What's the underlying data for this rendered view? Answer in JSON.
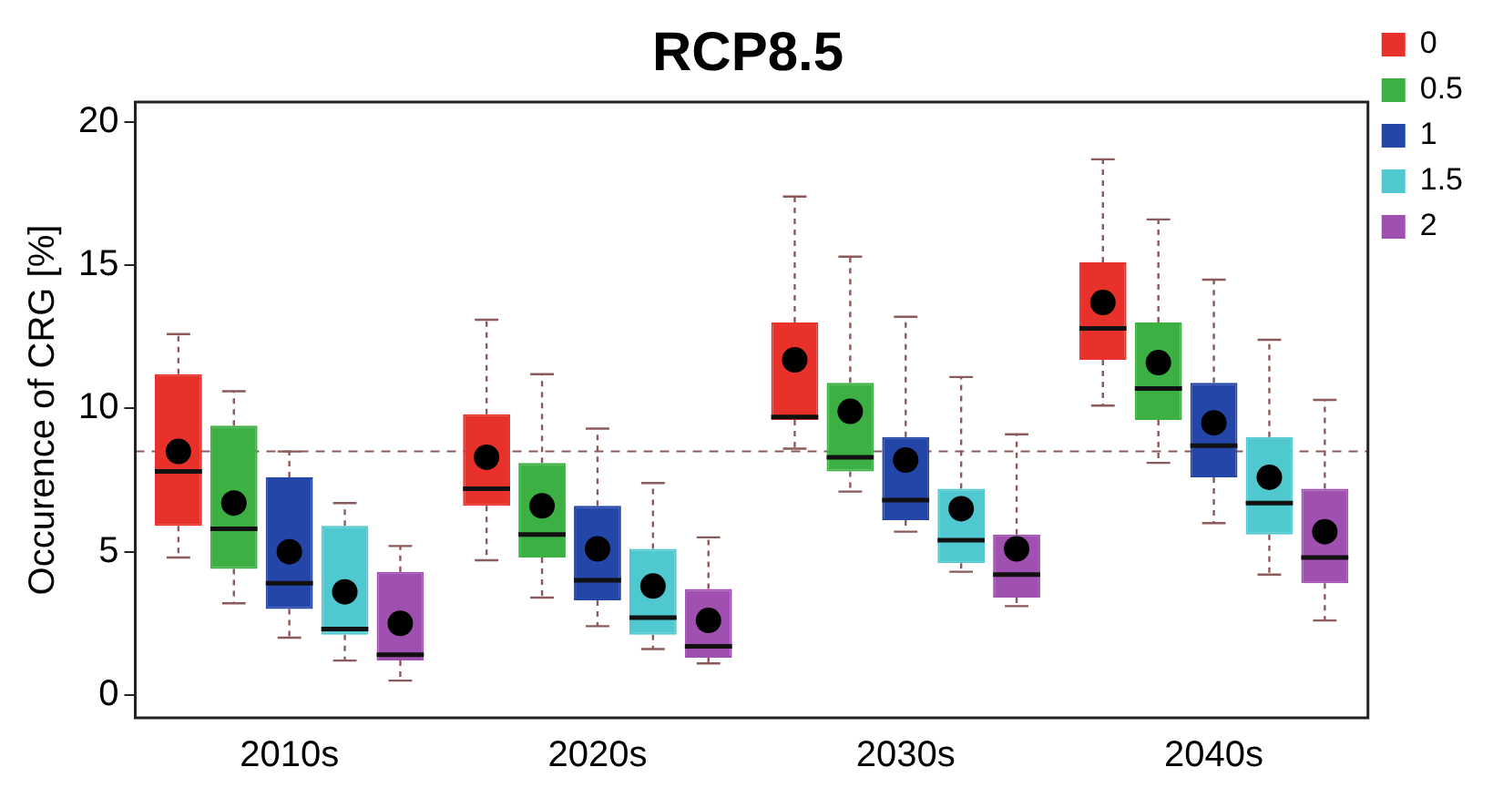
{
  "chart_data": {
    "type": "box",
    "title": "RCP8.5",
    "ylabel": "Occurence of CRG [%]",
    "categories": [
      "2010s",
      "2020s",
      "2030s",
      "2040s"
    ],
    "ylim": [
      -0.8,
      20.7
    ],
    "yticks": [
      0,
      5,
      10,
      15,
      20
    ],
    "grid": false,
    "legend": "top right",
    "ref_lines": [
      {
        "axis": "y",
        "value": 8.5,
        "color": "#8b5a5a",
        "line_style": "dashed"
      }
    ],
    "series": [
      {
        "name": "0",
        "color": "#e8312a",
        "boxes": [
          {
            "low": 4.8,
            "q1": 5.9,
            "median": 7.8,
            "q3": 11.2,
            "high": 12.6,
            "mean": 8.5
          },
          {
            "low": 4.7,
            "q1": 6.6,
            "median": 7.2,
            "q3": 9.8,
            "high": 13.1,
            "mean": 8.3
          },
          {
            "low": 8.6,
            "q1": 9.6,
            "median": 9.7,
            "q3": 13.0,
            "high": 17.4,
            "mean": 11.7
          },
          {
            "low": 10.1,
            "q1": 11.7,
            "median": 12.8,
            "q3": 15.1,
            "high": 18.7,
            "mean": 13.7
          }
        ]
      },
      {
        "name": "0.5",
        "color": "#3cb043",
        "boxes": [
          {
            "low": 3.2,
            "q1": 4.4,
            "median": 5.8,
            "q3": 9.4,
            "high": 10.6,
            "mean": 6.7
          },
          {
            "low": 3.4,
            "q1": 4.8,
            "median": 5.6,
            "q3": 8.1,
            "high": 11.2,
            "mean": 6.6
          },
          {
            "low": 7.1,
            "q1": 7.8,
            "median": 8.3,
            "q3": 10.9,
            "high": 15.3,
            "mean": 9.9
          },
          {
            "low": 8.1,
            "q1": 9.6,
            "median": 10.7,
            "q3": 13.0,
            "high": 16.6,
            "mean": 11.6
          }
        ]
      },
      {
        "name": "1",
        "color": "#2346a8",
        "boxes": [
          {
            "low": 2.0,
            "q1": 3.0,
            "median": 3.9,
            "q3": 7.6,
            "high": 8.5,
            "mean": 5.0
          },
          {
            "low": 2.4,
            "q1": 3.3,
            "median": 4.0,
            "q3": 6.6,
            "high": 9.3,
            "mean": 5.1
          },
          {
            "low": 5.7,
            "q1": 6.1,
            "median": 6.8,
            "q3": 9.0,
            "high": 13.2,
            "mean": 8.2
          },
          {
            "low": 6.0,
            "q1": 7.6,
            "median": 8.7,
            "q3": 10.9,
            "high": 14.5,
            "mean": 9.5
          }
        ]
      },
      {
        "name": "1.5",
        "color": "#4fc8d0",
        "boxes": [
          {
            "low": 1.2,
            "q1": 2.1,
            "median": 2.3,
            "q3": 5.9,
            "high": 6.7,
            "mean": 3.6
          },
          {
            "low": 1.6,
            "q1": 2.1,
            "median": 2.7,
            "q3": 5.1,
            "high": 7.4,
            "mean": 3.8
          },
          {
            "low": 4.3,
            "q1": 4.6,
            "median": 5.4,
            "q3": 7.2,
            "high": 11.1,
            "mean": 6.5
          },
          {
            "low": 4.2,
            "q1": 5.6,
            "median": 6.7,
            "q3": 9.0,
            "high": 12.4,
            "mean": 7.6
          }
        ]
      },
      {
        "name": "2",
        "color": "#a050b0",
        "boxes": [
          {
            "low": 0.5,
            "q1": 1.2,
            "median": 1.4,
            "q3": 4.3,
            "high": 5.2,
            "mean": 2.5
          },
          {
            "low": 1.1,
            "q1": 1.3,
            "median": 1.7,
            "q3": 3.7,
            "high": 5.5,
            "mean": 2.6
          },
          {
            "low": 3.1,
            "q1": 3.4,
            "median": 4.2,
            "q3": 5.6,
            "high": 9.1,
            "mean": 5.1
          },
          {
            "low": 2.6,
            "q1": 3.9,
            "median": 4.8,
            "q3": 7.2,
            "high": 10.3,
            "mean": 5.7
          }
        ]
      }
    ]
  }
}
